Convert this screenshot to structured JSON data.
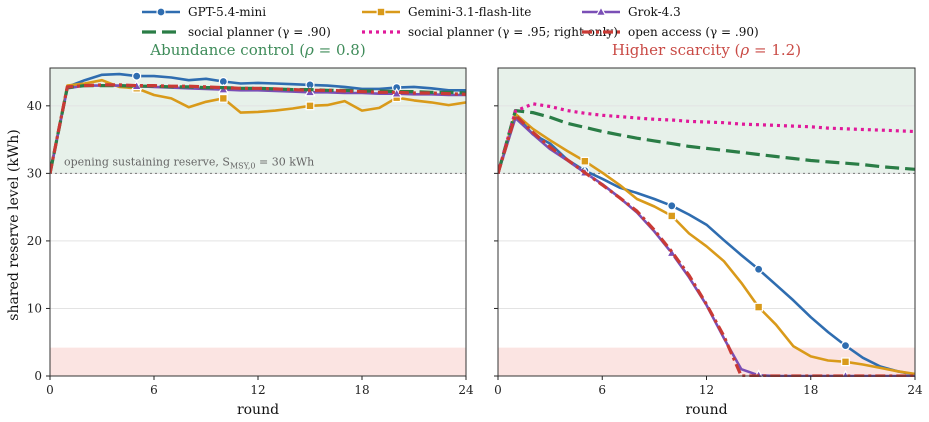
{
  "chart_data": {
    "type": "line",
    "legend": {
      "placement": "top",
      "entries": [
        {
          "label": "GPT-5.4-mini",
          "color": "#2f6db0",
          "style": "solid",
          "marker": "circle"
        },
        {
          "label": "Gemini-3.1-flash-lite",
          "color": "#d99a1a",
          "style": "solid",
          "marker": "square"
        },
        {
          "label": "Grok-4.3",
          "color": "#7a4fb6",
          "style": "solid",
          "marker": "triangle"
        },
        {
          "label": "social planner (γ = .90)",
          "color": "#2a7d46",
          "style": "dashed",
          "marker": "none"
        },
        {
          "label": "social planner (γ = .95; right only)",
          "color": "#e0199a",
          "style": "dotted",
          "marker": "none"
        },
        {
          "label": "open access (γ = .90)",
          "color": "#c93a35",
          "style": "dashdot",
          "marker": "none"
        }
      ]
    },
    "ylabel": "shared reserve level (kWh)",
    "xlabel": "round",
    "xlim": [
      0,
      24
    ],
    "ylim": [
      0,
      45.6
    ],
    "xticks": [
      0,
      6,
      12,
      18,
      24
    ],
    "yticks": [
      0,
      10,
      20,
      30,
      40
    ],
    "grid": "horizontal",
    "bands": {
      "green": [
        30,
        45.6
      ],
      "red": [
        0,
        4.2
      ]
    },
    "reference_line": {
      "y": 30,
      "annotation": "opening sustaining reserve, S",
      "annotation_sub": "MSY,0",
      "annotation_tail": " = 30 kWh"
    },
    "panels": [
      {
        "title": "Abundance control (",
        "title_rho": "ρ",
        "title_tail": " = 0.8)",
        "title_color": "#3f8c5a",
        "x": [
          0,
          1,
          2,
          3,
          4,
          5,
          6,
          7,
          8,
          9,
          10,
          11,
          12,
          13,
          14,
          15,
          16,
          17,
          18,
          19,
          20,
          21,
          22,
          23,
          24
        ],
        "series": [
          {
            "name": "GPT-5.4-mini",
            "markers_at": [
              5,
              10,
              15,
              20
            ],
            "values": [
              30,
              42.8,
              43.8,
              44.6,
              44.7,
              44.4,
              44.4,
              44.2,
              43.8,
              44.0,
              43.6,
              43.3,
              43.4,
              43.3,
              43.2,
              43.1,
              43.0,
              42.8,
              42.5,
              42.5,
              42.7,
              42.8,
              42.6,
              42.3,
              42.3
            ]
          },
          {
            "name": "Gemini-3.1-flash-lite",
            "markers_at": [
              5,
              10,
              15,
              20
            ],
            "values": [
              30,
              43.0,
              43.3,
              43.8,
              42.8,
              42.6,
              41.6,
              41.1,
              39.8,
              40.6,
              41.1,
              39.0,
              39.1,
              39.3,
              39.6,
              40.0,
              40.1,
              40.7,
              39.3,
              39.7,
              41.2,
              40.8,
              40.5,
              40.1,
              40.5
            ]
          },
          {
            "name": "Grok-4.3",
            "markers_at": [
              5,
              10,
              15,
              20
            ],
            "values": [
              30,
              42.6,
              43.0,
              43.0,
              43.0,
              42.9,
              42.8,
              42.7,
              42.6,
              42.5,
              42.4,
              42.3,
              42.3,
              42.2,
              42.1,
              42.0,
              42.0,
              41.9,
              41.9,
              41.8,
              41.8,
              41.7,
              41.7,
              41.6,
              41.6
            ]
          },
          {
            "name": "social planner (γ = .90)",
            "values": [
              30,
              42.7,
              43.0,
              43.0,
              43.0,
              42.9,
              42.9,
              42.8,
              42.8,
              42.7,
              42.7,
              42.6,
              42.6,
              42.5,
              42.4,
              42.4,
              42.3,
              42.3,
              42.2,
              42.2,
              42.1,
              42.1,
              42.0,
              42.0,
              41.9
            ]
          },
          {
            "name": "open access (γ = .90)",
            "values": [
              30,
              42.8,
              43.0,
              43.1,
              43.1,
              43.0,
              43.0,
              42.9,
              42.9,
              42.8,
              42.7,
              42.6,
              42.6,
              42.5,
              42.4,
              42.3,
              42.3,
              42.2,
              42.1,
              42.0,
              42.0,
              41.9,
              41.9,
              41.8,
              41.7
            ]
          }
        ]
      },
      {
        "title": "Higher scarcity (",
        "title_rho": "ρ",
        "title_tail": " = 1.2)",
        "title_color": "#c94a45",
        "x": [
          0,
          1,
          2,
          3,
          4,
          5,
          6,
          7,
          8,
          9,
          10,
          11,
          12,
          13,
          14,
          15,
          16,
          17,
          18,
          19,
          20,
          21,
          22,
          23,
          24
        ],
        "series": [
          {
            "name": "GPT-5.4-mini",
            "markers_at": [
              5,
              10,
              15,
              20
            ],
            "values": [
              30,
              38.7,
              35.8,
              34.4,
              32.0,
              30.4,
              29.2,
              27.9,
              27.1,
              26.2,
              25.2,
              23.9,
              22.4,
              20.1,
              17.9,
              15.8,
              13.5,
              11.2,
              8.7,
              6.5,
              4.5,
              2.7,
              1.4,
              0.7,
              0.2
            ]
          },
          {
            "name": "Gemini-3.1-flash-lite",
            "markers_at": [
              5,
              10,
              15,
              20
            ],
            "values": [
              30,
              38.8,
              36.6,
              34.9,
              33.3,
              31.8,
              30.1,
              28.3,
              26.2,
              25.1,
              23.7,
              21.1,
              19.2,
              17.0,
              13.8,
              10.2,
              7.6,
              4.4,
              2.9,
              2.3,
              2.1,
              1.7,
              1.2,
              0.7,
              0.3
            ]
          },
          {
            "name": "Grok-4.3",
            "markers_at": [
              5,
              10,
              15,
              20
            ],
            "values": [
              30,
              38.2,
              35.8,
              33.6,
              31.9,
              30.1,
              28.4,
              26.4,
              24.2,
              21.4,
              18.2,
              14.6,
              10.5,
              5.6,
              1.0,
              0.1,
              0,
              0,
              0,
              0,
              0,
              0,
              0,
              0,
              0
            ]
          },
          {
            "name": "social planner (γ = .90)",
            "values": [
              30,
              39.3,
              39.0,
              38.3,
              37.4,
              36.8,
              36.2,
              35.7,
              35.2,
              34.8,
              34.4,
              34.0,
              33.7,
              33.4,
              33.1,
              32.8,
              32.5,
              32.2,
              31.9,
              31.7,
              31.5,
              31.3,
              31.0,
              30.8,
              30.6
            ]
          },
          {
            "name": "social planner (γ = .95; right only)",
            "values": [
              30,
              39.2,
              40.3,
              39.9,
              39.3,
              38.9,
              38.6,
              38.4,
              38.2,
              38.0,
              37.9,
              37.7,
              37.6,
              37.5,
              37.3,
              37.2,
              37.1,
              37.0,
              36.9,
              36.7,
              36.6,
              36.5,
              36.4,
              36.3,
              36.2
            ]
          },
          {
            "name": "open access (γ = .90)",
            "values": [
              30,
              38.6,
              36.1,
              33.9,
              32.0,
              30.1,
              28.3,
              26.4,
              24.4,
              21.6,
              18.4,
              14.9,
              10.6,
              5.9,
              0,
              0,
              0,
              0,
              0,
              0,
              0,
              0,
              0,
              0,
              0
            ]
          }
        ]
      }
    ]
  }
}
